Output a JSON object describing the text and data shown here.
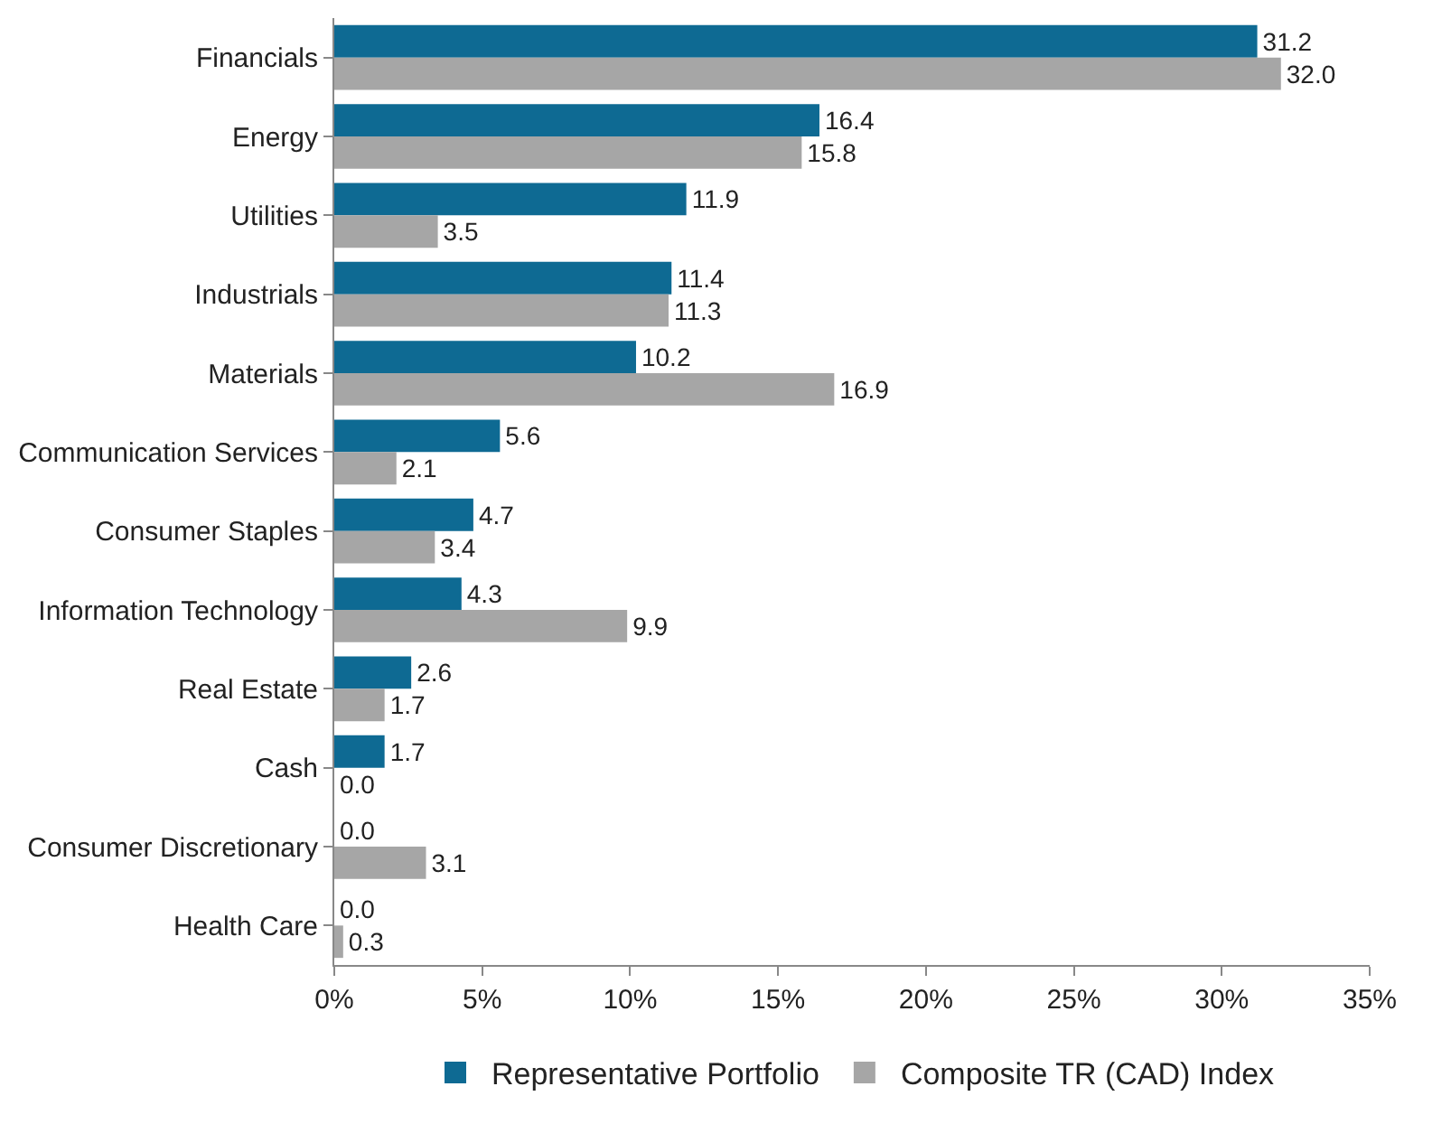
{
  "chart_data": {
    "type": "bar",
    "orientation": "horizontal",
    "categories": [
      "Financials",
      "Energy",
      "Utilities",
      "Industrials",
      "Materials",
      "Communication Services",
      "Consumer Staples",
      "Information Technology",
      "Real Estate",
      "Cash",
      "Consumer Discretionary",
      "Health Care"
    ],
    "series": [
      {
        "name": "Representative Portfolio",
        "color": "#0e6a93",
        "values": [
          31.2,
          16.4,
          11.9,
          11.4,
          10.2,
          5.6,
          4.7,
          4.3,
          2.6,
          1.7,
          0,
          0
        ],
        "value_labels": [
          "31.2",
          "16.4",
          "11.9",
          "11.4",
          "10.2",
          "5.6",
          "4.7",
          "4.3",
          "2.6",
          "1.7",
          "0.0",
          "0.0"
        ]
      },
      {
        "name": "Composite TR (CAD) Index",
        "color": "#a6a6a6",
        "values": [
          32,
          15.8,
          3.5,
          11.3,
          16.9,
          2.1,
          3.4,
          9.9,
          1.7,
          0,
          3.1,
          0.3
        ],
        "value_labels": [
          "32.0",
          "15.8",
          "3.5",
          "11.3",
          "16.9",
          "2.1",
          "3.4",
          "9.9",
          "1.7",
          "0.0",
          "3.1",
          "0.3"
        ]
      }
    ],
    "xlim": [
      0,
      35
    ],
    "xticks": [
      {
        "value": 0,
        "label": "0%"
      },
      {
        "value": 5,
        "label": "5%"
      },
      {
        "value": 10,
        "label": "10%"
      },
      {
        "value": 15,
        "label": "15%"
      },
      {
        "value": 20,
        "label": "20%"
      },
      {
        "value": 25,
        "label": "25%"
      },
      {
        "value": 30,
        "label": "30%"
      },
      {
        "value": 35,
        "label": "35%"
      }
    ],
    "legend": "bottom"
  }
}
